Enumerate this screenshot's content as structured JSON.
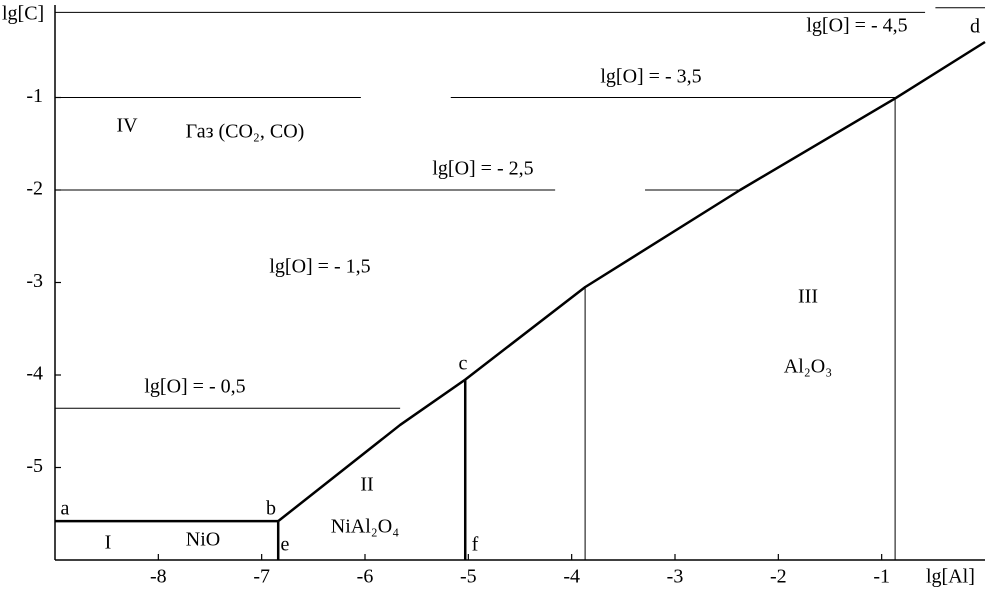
{
  "chart_data": {
    "type": "line",
    "xlabel": "lg[Al]",
    "ylabel": "lg[C]",
    "xlim": [
      -9,
      0
    ],
    "ylim": [
      -6,
      0
    ],
    "xticks": [
      -8,
      -7,
      -6,
      -5,
      -4,
      -3,
      -2,
      -1
    ],
    "yticks": [
      -1,
      -2,
      -3,
      -4,
      -5
    ],
    "series": [
      {
        "color": "#000000",
        "linewidth": 2.5,
        "x": [
          -9,
          -6.84
        ],
        "values": [
          -5.58,
          -5.58
        ]
      },
      {
        "color": "#000000",
        "linewidth": 2.5,
        "x": [
          -6.84,
          -6.84
        ],
        "values": [
          -5.58,
          -6
        ]
      },
      {
        "color": "#000000",
        "linewidth": 2.5,
        "x": [
          -6.84,
          -5.66,
          -5.03,
          -3.87,
          -2.37,
          -0.87,
          0
        ],
        "values": [
          -5.58,
          -4.54,
          -4.05,
          -3.05,
          -2.0,
          -1.01,
          -0.4
        ]
      },
      {
        "color": "#000000",
        "linewidth": 2.5,
        "x": [
          -5.03,
          -5.03
        ],
        "values": [
          -4.05,
          -6
        ]
      },
      {
        "color": "#000000",
        "linewidth": 1,
        "x": [
          -3.87,
          -3.87
        ],
        "values": [
          -3.05,
          -6
        ]
      },
      {
        "color": "#000000",
        "linewidth": 1,
        "x": [
          -0.87,
          -0.87
        ],
        "values": [
          -1.01,
          -6
        ]
      },
      {
        "color": "#000000",
        "linewidth": 1,
        "x": [
          -9,
          -5.66
        ],
        "values": [
          -4.36,
          -4.36
        ]
      },
      {
        "color": "#000000",
        "linewidth": 1,
        "x": [
          -9,
          -4.16,
          null,
          -3.29,
          -2.37
        ],
        "values": [
          -2.0,
          -2.0,
          null,
          -2.0,
          -2.0
        ]
      },
      {
        "color": "#000000",
        "linewidth": 1,
        "x": [
          -9,
          -6.04,
          null,
          -5.17,
          -0.87
        ],
        "values": [
          -1.0,
          -1.0,
          null,
          -1.0,
          -1.0
        ]
      },
      {
        "color": "#000000",
        "linewidth": 1,
        "x": [
          -9,
          -0.58,
          null,
          -0.48,
          0
        ],
        "values": [
          -0.08,
          -0.08,
          null,
          -0.03,
          -0.03
        ]
      }
    ],
    "annotations": [
      "lg[O] = - 0,5",
      "lg[O] = - 1,5",
      "lg[O] = - 2,5",
      "lg[O] = - 3,5",
      "lg[O] = - 4,5",
      "IV",
      "Газ (CO₂, CO)",
      "III",
      "Al₂O₃",
      "II",
      "NiAl₂O₄",
      "I",
      "NiO",
      "a",
      "b",
      "c",
      "d",
      "e",
      "f"
    ]
  }
}
